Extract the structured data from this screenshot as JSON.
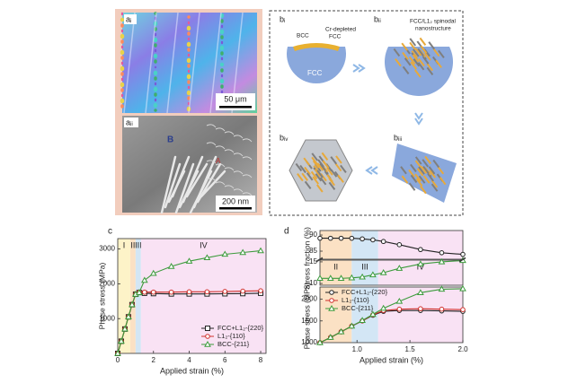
{
  "panels": {
    "a": {
      "label_top": "aᵢ",
      "label_bottom": "aᵢᵢ",
      "scale_top": "50 μm",
      "scale_bottom": "200 nm",
      "region_b": "B",
      "region_a": "A"
    },
    "b": {
      "step1": "bᵢ",
      "step2": "bᵢᵢ",
      "step3": "bᵢᵢᵢ",
      "step4": "bᵢᵥ",
      "bcc": "BCC",
      "cr_line1": "Cr-depleted",
      "cr_line2": "FCC",
      "fcc": "FCC",
      "spin_line1": "FCC/L1₂ spinodal",
      "spin_line2": "nanostructure"
    }
  },
  "chart_data": [
    {
      "type": "line",
      "label": "c",
      "xlabel": "Applied strain (%)",
      "ylabel": "Phase stress (MPa)",
      "legend": "lower right",
      "x": [
        0,
        0.2,
        0.4,
        0.6,
        0.8,
        1.0,
        1.2,
        1.5,
        2,
        3,
        4,
        5,
        6,
        7,
        8
      ],
      "xlim": [
        0,
        8.3
      ],
      "xticks": [
        0,
        2,
        4,
        6,
        8
      ],
      "ylim": [
        0,
        3300
      ],
      "yticks": [
        1000,
        2000,
        3000
      ],
      "regions": [
        {
          "label": "I",
          "from": 0,
          "to": 0.7,
          "color": "#fdf3c8"
        },
        {
          "label": "II",
          "from": 0.7,
          "to": 1.0,
          "color": "#fbe1c4"
        },
        {
          "label": "III",
          "from": 1.0,
          "to": 1.3,
          "color": "#d3e6f5"
        },
        {
          "label": "IV",
          "from": 1.3,
          "to": 8.3,
          "color": "#f9e2f4"
        }
      ],
      "series": [
        {
          "name": "FCC+L1₂-{220}",
          "color": "#222222",
          "marker": "square",
          "values": [
            0,
            350,
            700,
            1050,
            1400,
            1700,
            1750,
            1730,
            1720,
            1710,
            1710,
            1710,
            1715,
            1720,
            1730
          ]
        },
        {
          "name": "L1₂-{110}",
          "color": "#d0312d",
          "marker": "circle",
          "values": [
            0,
            350,
            700,
            1050,
            1400,
            1700,
            1760,
            1760,
            1760,
            1760,
            1770,
            1770,
            1780,
            1790,
            1800
          ]
        },
        {
          "name": "BCC-{211}",
          "color": "#3c9b3c",
          "marker": "triangle",
          "values": [
            0,
            350,
            700,
            1050,
            1400,
            1700,
            1750,
            2100,
            2300,
            2500,
            2650,
            2750,
            2850,
            2900,
            2950
          ]
        }
      ]
    },
    {
      "type": "line",
      "label": "d",
      "ylabel": "Stress fraction (%)",
      "x": [
        0.65,
        0.75,
        0.85,
        0.95,
        1.05,
        1.15,
        1.25,
        1.4,
        1.6,
        1.8,
        2.0
      ],
      "xlim": [
        0.65,
        2.0
      ],
      "ylim": [
        82.5,
        91.4
      ],
      "yticks": [
        85,
        90
      ],
      "regions": [
        {
          "from": 0.65,
          "to": 0.95,
          "color": "#fbe1c4"
        },
        {
          "from": 0.95,
          "to": 1.2,
          "color": "#d3e6f5"
        },
        {
          "from": 1.2,
          "to": 2.0,
          "color": "#f9e2f4"
        }
      ],
      "series": [
        {
          "color": "#222222",
          "marker": "circle",
          "values": [
            89,
            89,
            89,
            89,
            88.8,
            88.5,
            88,
            87,
            85.5,
            84.5,
            84
          ]
        }
      ]
    },
    {
      "type": "line",
      "x": [
        0.65,
        0.75,
        0.85,
        0.95,
        1.05,
        1.15,
        1.25,
        1.4,
        1.6,
        1.8,
        2.0
      ],
      "xlim": [
        0.65,
        2.0
      ],
      "ylim": [
        9.6,
        15.4
      ],
      "yticks": [
        10,
        15
      ],
      "regions": [
        {
          "label": "II",
          "from": 0.65,
          "to": 0.95,
          "color": "#fbe1c4"
        },
        {
          "label": "III",
          "from": 0.95,
          "to": 1.2,
          "color": "#d3e6f5"
        },
        {
          "label": "IV",
          "from": 1.2,
          "to": 2.0,
          "color": "#f9e2f4"
        }
      ],
      "series": [
        {
          "color": "#3c9b3c",
          "marker": "triangle",
          "values": [
            11.2,
            11.2,
            11.2,
            11.3,
            11.5,
            12,
            12.5,
            13.5,
            14.5,
            15.0,
            15.3
          ]
        }
      ]
    },
    {
      "type": "line",
      "xlabel": "Applied strain (%)",
      "ylabel": "Phase stress (MPa)",
      "legend": "upper left",
      "x": [
        0.65,
        0.75,
        0.85,
        0.95,
        1.05,
        1.15,
        1.25,
        1.4,
        1.6,
        1.8,
        2.0
      ],
      "xlim": [
        0.65,
        2.0
      ],
      "xticks": [
        {
          "value": 1.0,
          "label": "1.0"
        },
        {
          "value": 1.5,
          "label": "1.5"
        },
        {
          "value": 2.0,
          "label": "2.0"
        }
      ],
      "ylim": [
        1000,
        2280
      ],
      "yticks": [
        1000,
        1500,
        2000
      ],
      "regions": [
        {
          "from": 0.65,
          "to": 0.95,
          "color": "#fbe1c4"
        },
        {
          "from": 0.95,
          "to": 1.2,
          "color": "#d3e6f5"
        },
        {
          "from": 1.2,
          "to": 2.0,
          "color": "#f9e2f4"
        }
      ],
      "series": [
        {
          "name": "FCC+L1₂-{220}",
          "color": "#222222",
          "marker": "circle",
          "values": [
            1000,
            1120,
            1250,
            1380,
            1500,
            1630,
            1720,
            1740,
            1740,
            1730,
            1720
          ]
        },
        {
          "name": "L1₂-{110}",
          "color": "#d0312d",
          "marker": "circle",
          "values": [
            1000,
            1120,
            1250,
            1380,
            1500,
            1640,
            1740,
            1770,
            1780,
            1770,
            1760
          ]
        },
        {
          "name": "BCC-{211}",
          "color": "#3c9b3c",
          "marker": "triangle",
          "values": [
            1000,
            1120,
            1250,
            1380,
            1510,
            1650,
            1790,
            1950,
            2150,
            2230,
            2240
          ]
        }
      ]
    }
  ]
}
